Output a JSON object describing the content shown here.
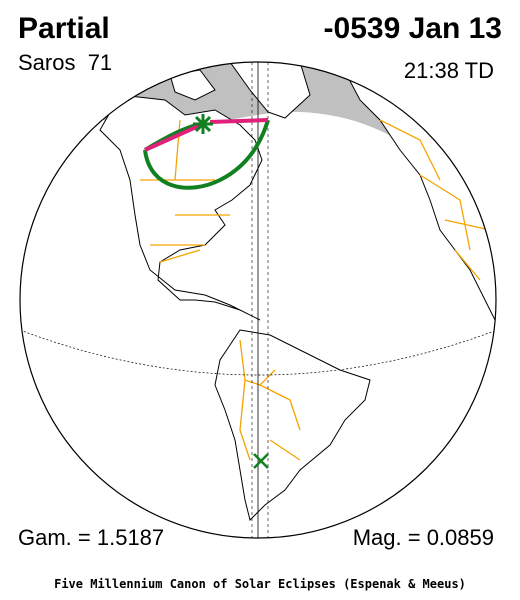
{
  "header": {
    "title": "Partial",
    "date": "-0539 Jan 13",
    "saros": "Saros  71",
    "time": "21:38 TD"
  },
  "footer": {
    "gamma": "Gam. = 1.5187",
    "magnitude": "Mag. = 0.0859",
    "credit": "Five Millennium Canon of Solar Eclipses (Espenak & Meeus)"
  }
}
